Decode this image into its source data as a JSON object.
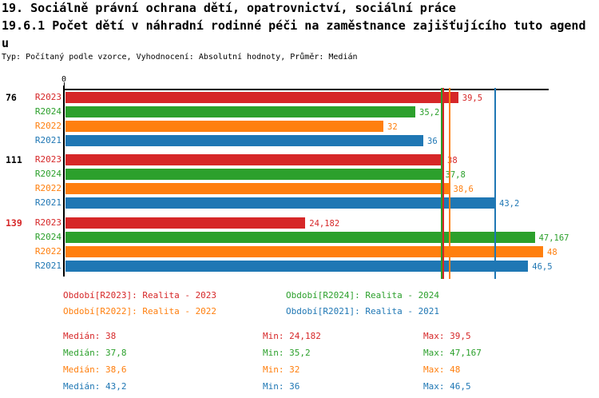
{
  "header": {
    "title_line1": "19. Sociálně právní ochrana dětí, opatrovnictví, sociální práce",
    "title_line2": "19.6.1 Počet dětí v náhradní rodinné péči na zaměstnance zajišťujícího tuto agend",
    "title_line3": "u",
    "subtitle": "Typ: Počítaný podle vzorce, Vyhodnocení: Absolutní hodnoty, Průměr: Medián"
  },
  "colors": {
    "R2023": "#d62728",
    "R2024": "#2ca02c",
    "R2022": "#ff7f0e",
    "R2021": "#1f77b4",
    "axis": "#000000",
    "text": "#000000"
  },
  "chart_data": {
    "type": "bar",
    "orientation": "horizontal",
    "title": "19.6.1 Počet dětí v náhradní rodinné péči na zaměstnance zajišťujícího tuto agendu",
    "x_axis": {
      "origin_label": "0",
      "min": 0,
      "max_visible": 48.6,
      "grid": false
    },
    "series_order": [
      "R2023",
      "R2024",
      "R2022",
      "R2021"
    ],
    "groups": [
      {
        "label": "76",
        "label_color": "#000000",
        "bars": [
          {
            "series": "R2023",
            "value": 39.5,
            "display": "39,5"
          },
          {
            "series": "R2024",
            "value": 35.2,
            "display": "35,2"
          },
          {
            "series": "R2022",
            "value": 32,
            "display": "32"
          },
          {
            "series": "R2021",
            "value": 36,
            "display": "36"
          }
        ]
      },
      {
        "label": "111",
        "label_color": "#000000",
        "bars": [
          {
            "series": "R2023",
            "value": 38,
            "display": "38"
          },
          {
            "series": "R2024",
            "value": 37.8,
            "display": "37,8"
          },
          {
            "series": "R2022",
            "value": 38.6,
            "display": "38,6"
          },
          {
            "series": "R2021",
            "value": 43.2,
            "display": "43,2"
          }
        ]
      },
      {
        "label": "139",
        "label_color": "#d62728",
        "bars": [
          {
            "series": "R2023",
            "value": 24.182,
            "display": "24,182"
          },
          {
            "series": "R2024",
            "value": 47.167,
            "display": "47,167"
          },
          {
            "series": "R2022",
            "value": 48,
            "display": "48"
          },
          {
            "series": "R2021",
            "value": 46.5,
            "display": "46,5"
          }
        ]
      }
    ],
    "median_lines": [
      {
        "series": "R2024",
        "value": 37.8
      },
      {
        "series": "R2023",
        "value": 38
      },
      {
        "series": "R2022",
        "value": 38.6
      },
      {
        "series": "R2021",
        "value": 43.2
      }
    ]
  },
  "legend": {
    "items": [
      {
        "series": "R2023",
        "label": "Období[R2023]: Realita - 2023"
      },
      {
        "series": "R2024",
        "label": "Období[R2024]: Realita - 2024"
      },
      {
        "series": "R2022",
        "label": "Období[R2022]: Realita - 2022"
      },
      {
        "series": "R2021",
        "label": "Období[R2021]: Realita - 2021"
      }
    ]
  },
  "stats": {
    "median_label": "Medián",
    "min_label": "Min",
    "max_label": "Max",
    "rows": [
      {
        "series": "R2023",
        "median": "38",
        "min": "24,182",
        "max": "39,5"
      },
      {
        "series": "R2024",
        "median": "37,8",
        "min": "35,2",
        "max": "47,167"
      },
      {
        "series": "R2022",
        "median": "38,6",
        "min": "32",
        "max": "48"
      },
      {
        "series": "R2021",
        "median": "43,2",
        "min": "36",
        "max": "46,5"
      }
    ]
  }
}
